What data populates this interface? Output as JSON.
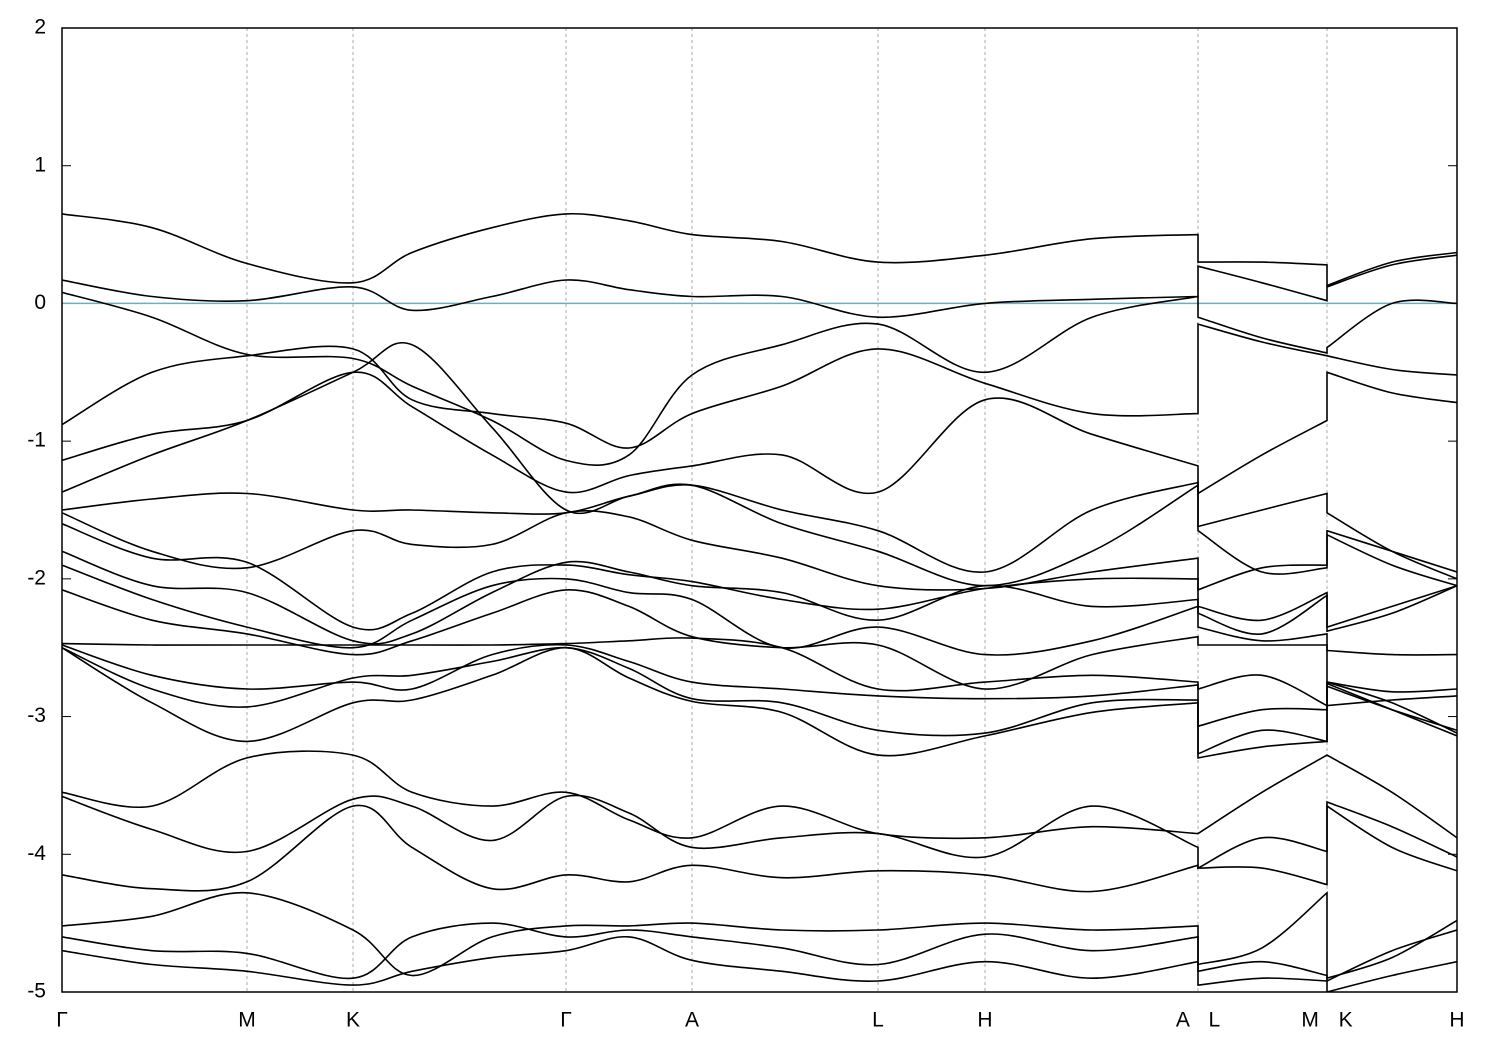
{
  "chart_data": {
    "type": "line",
    "x": [
      0,
      0.9,
      1.85,
      2.91,
      3.5,
      4.3,
      5.04,
      5.67,
      6.3,
      7.2,
      8.16,
      9.23,
      10.3,
      11.36,
      11.36,
      12.0,
      12.65,
      12.65,
      13.3,
      13.95
    ],
    "xlim": [
      0,
      13.95
    ],
    "xticks": [
      {
        "value": 0,
        "label": "Γ"
      },
      {
        "value": 1.85,
        "label": "M"
      },
      {
        "value": 2.91,
        "label": "K"
      },
      {
        "value": 5.04,
        "label": "Γ"
      },
      {
        "value": 6.3,
        "label": "A"
      },
      {
        "value": 8.16,
        "label": "L"
      },
      {
        "value": 9.23,
        "label": "H"
      },
      {
        "value": 11.36,
        "label": "A L"
      },
      {
        "value": 12.65,
        "label": "M K"
      },
      {
        "value": 13.95,
        "label": "H"
      }
    ],
    "ylim": [
      -5,
      2
    ],
    "yticks": [
      -5,
      -4,
      -3,
      -2,
      -1,
      0,
      1,
      2
    ],
    "grid": true,
    "hlines": [
      {
        "value": 0,
        "color": "#5fb4c8"
      }
    ],
    "series": [
      {
        "color": "#000000",
        "values": [
          0.65,
          0.55,
          0.29,
          0.15,
          0.37,
          0.55,
          0.65,
          0.6,
          0.5,
          0.45,
          0.3,
          0.35,
          0.47,
          0.5,
          0.3,
          0.3,
          0.28,
          0.13,
          0.3,
          0.37
        ]
      },
      {
        "color": "#000000",
        "values": [
          0.17,
          0.05,
          0.02,
          0.12,
          -0.05,
          0.05,
          0.17,
          0.1,
          0.05,
          0.05,
          -0.1,
          0.0,
          0.03,
          0.05,
          0.27,
          0.15,
          0.02,
          0.12,
          0.28,
          0.35
        ]
      },
      {
        "color": "#000000",
        "values": [
          0.08,
          -0.1,
          -0.37,
          -0.4,
          -0.6,
          -0.85,
          -1.14,
          -1.1,
          -0.52,
          -0.3,
          -0.15,
          -0.5,
          -0.1,
          0.05,
          -0.1,
          -0.25,
          -0.36,
          -0.32,
          0.0,
          0.0
        ]
      },
      {
        "color": "#000000",
        "values": [
          -0.88,
          -0.5,
          -0.38,
          -0.33,
          -0.7,
          -0.8,
          -0.87,
          -1.05,
          -0.8,
          -0.6,
          -0.33,
          -0.58,
          -0.8,
          -0.8,
          -0.15,
          -0.28,
          -0.38,
          -0.38,
          -0.48,
          -0.52
        ]
      },
      {
        "color": "#000000",
        "values": [
          -1.14,
          -0.95,
          -0.85,
          -0.5,
          -0.75,
          -1.1,
          -1.37,
          -1.25,
          -1.18,
          -1.1,
          -1.37,
          -0.7,
          -0.95,
          -1.18,
          -1.38,
          -1.1,
          -0.85,
          -0.5,
          -0.65,
          -0.72
        ]
      },
      {
        "color": "#000000",
        "values": [
          -1.37,
          -1.1,
          -0.85,
          -0.5,
          -0.3,
          -0.9,
          -1.5,
          -1.4,
          -1.32,
          -1.5,
          -1.65,
          -1.95,
          -1.5,
          -1.3,
          -1.62,
          -1.5,
          -1.38,
          -1.52,
          -1.8,
          -2.0
        ]
      },
      {
        "color": "#000000",
        "values": [
          -1.5,
          -1.42,
          -1.38,
          -1.5,
          -1.5,
          -1.52,
          -1.52,
          -1.4,
          -1.32,
          -1.6,
          -1.8,
          -2.05,
          -1.8,
          -1.32,
          -1.65,
          -1.95,
          -1.92,
          -1.65,
          -1.8,
          -1.95
        ]
      },
      {
        "color": "#000000",
        "values": [
          -1.52,
          -1.8,
          -1.92,
          -1.65,
          -1.75,
          -1.75,
          -1.52,
          -1.55,
          -1.72,
          -1.85,
          -2.05,
          -2.07,
          -1.95,
          -1.85,
          -2.08,
          -1.92,
          -1.9,
          -1.68,
          -1.9,
          -2.05
        ]
      },
      {
        "color": "#000000",
        "values": [
          -1.6,
          -1.85,
          -1.88,
          -2.35,
          -2.25,
          -1.95,
          -1.9,
          -1.97,
          -2.02,
          -2.15,
          -2.22,
          -2.07,
          -2.0,
          -2.0,
          -2.2,
          -2.3,
          -2.1,
          -2.35,
          -2.2,
          -2.05
        ]
      },
      {
        "color": "#000000",
        "values": [
          -1.8,
          -2.05,
          -2.1,
          -2.45,
          -2.4,
          -2.1,
          -1.88,
          -1.95,
          -2.05,
          -2.1,
          -2.3,
          -2.05,
          -2.2,
          -2.15,
          -2.25,
          -2.4,
          -2.12,
          -2.38,
          -2.25,
          -2.05
        ]
      },
      {
        "color": "#000000",
        "values": [
          -1.9,
          -2.15,
          -2.35,
          -2.5,
          -2.3,
          -2.05,
          -2.0,
          -2.1,
          -2.15,
          -2.5,
          -2.35,
          -2.55,
          -2.45,
          -2.2,
          -2.35,
          -2.45,
          -2.4,
          -2.52,
          -2.55,
          -2.55
        ]
      },
      {
        "color": "#000000",
        "values": [
          -2.08,
          -2.3,
          -2.4,
          -2.55,
          -2.45,
          -2.25,
          -2.08,
          -2.2,
          -2.42,
          -2.5,
          -2.48,
          -2.8,
          -2.55,
          -2.42,
          -2.48,
          -2.48,
          -2.48,
          -2.75,
          -2.82,
          -2.8
        ]
      },
      {
        "color": "#000000",
        "values": [
          -2.47,
          -2.48,
          -2.48,
          -2.48,
          -2.48,
          -2.48,
          -2.47,
          -2.45,
          -2.43,
          -2.5,
          -2.8,
          -2.75,
          -2.7,
          -2.75,
          -2.8,
          -2.7,
          -2.92,
          -2.78,
          -2.95,
          -3.1
        ]
      },
      {
        "color": "#000000",
        "values": [
          -2.48,
          -2.7,
          -2.8,
          -2.75,
          -2.8,
          -2.55,
          -2.48,
          -2.6,
          -2.75,
          -2.8,
          -2.85,
          -2.87,
          -2.85,
          -2.77,
          -3.07,
          -2.95,
          -2.95,
          -2.92,
          -2.88,
          -2.85
        ]
      },
      {
        "color": "#000000",
        "values": [
          -2.5,
          -2.8,
          -2.93,
          -2.72,
          -2.7,
          -2.6,
          -2.5,
          -2.65,
          -2.87,
          -2.9,
          -3.1,
          -3.12,
          -2.9,
          -2.88,
          -3.27,
          -3.1,
          -3.18,
          -2.75,
          -2.9,
          -3.12
        ]
      },
      {
        "color": "#000000",
        "values": [
          -2.5,
          -2.9,
          -3.18,
          -2.9,
          -2.88,
          -2.7,
          -2.5,
          -2.72,
          -2.89,
          -2.97,
          -3.28,
          -3.14,
          -2.97,
          -2.9,
          -3.3,
          -3.22,
          -3.18,
          -2.76,
          -2.95,
          -3.14
        ]
      },
      {
        "color": "#000000",
        "values": [
          -3.55,
          -3.65,
          -3.3,
          -3.28,
          -3.55,
          -3.65,
          -3.55,
          -3.75,
          -3.88,
          -3.65,
          -3.85,
          -3.88,
          -3.8,
          -3.85,
          -3.85,
          -3.55,
          -3.28,
          -3.28,
          -3.55,
          -3.88
        ]
      },
      {
        "color": "#000000",
        "values": [
          -3.58,
          -3.82,
          -3.98,
          -3.6,
          -3.65,
          -3.9,
          -3.58,
          -3.7,
          -3.95,
          -3.88,
          -3.85,
          -4.02,
          -3.65,
          -3.95,
          -4.1,
          -3.88,
          -3.98,
          -3.62,
          -3.8,
          -4.02
        ]
      },
      {
        "color": "#000000",
        "values": [
          -4.15,
          -4.25,
          -4.2,
          -3.65,
          -3.95,
          -4.25,
          -4.15,
          -4.2,
          -4.08,
          -4.17,
          -4.12,
          -4.15,
          -4.27,
          -4.08,
          -4.1,
          -4.1,
          -4.22,
          -3.65,
          -3.95,
          -4.12
        ]
      },
      {
        "color": "#000000",
        "values": [
          -4.52,
          -4.45,
          -4.28,
          -4.55,
          -4.88,
          -4.6,
          -4.52,
          -4.52,
          -4.5,
          -4.55,
          -4.55,
          -4.5,
          -4.55,
          -4.52,
          -4.8,
          -4.68,
          -4.28,
          -4.9,
          -4.75,
          -4.48
        ]
      },
      {
        "color": "#000000",
        "values": [
          -4.6,
          -4.7,
          -4.72,
          -4.9,
          -4.6,
          -4.5,
          -4.6,
          -4.55,
          -4.6,
          -4.68,
          -4.8,
          -4.58,
          -4.7,
          -4.6,
          -4.85,
          -4.78,
          -4.88,
          -4.92,
          -4.7,
          -4.55
        ]
      },
      {
        "color": "#000000",
        "values": [
          -4.7,
          -4.8,
          -4.85,
          -4.95,
          -4.85,
          -4.75,
          -4.7,
          -4.6,
          -4.77,
          -4.85,
          -4.92,
          -4.78,
          -4.9,
          -4.78,
          -4.95,
          -4.9,
          -4.92,
          -5.0,
          -4.88,
          -4.78
        ]
      }
    ]
  }
}
